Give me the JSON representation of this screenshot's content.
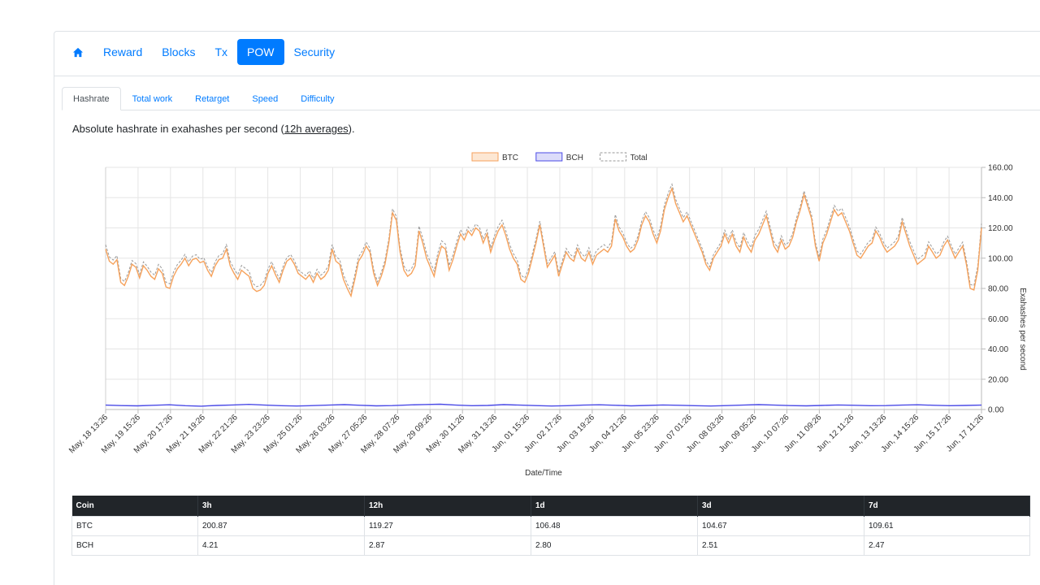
{
  "nav": {
    "home_icon": "home-icon",
    "items": [
      "Reward",
      "Blocks",
      "Tx",
      "POW",
      "Security"
    ],
    "active": "POW"
  },
  "subtabs": {
    "items": [
      "Hashrate",
      "Total work",
      "Retarget",
      "Speed",
      "Difficulty"
    ],
    "active": "Hashrate"
  },
  "description": {
    "prefix": "Absolute hashrate in exahashes per second (",
    "link": "12h averages",
    "suffix": ")."
  },
  "colors": {
    "btc": "#f6a25c",
    "bch": "#4b4be6",
    "total": "#9a9a9a",
    "active_nav": "#007bff"
  },
  "chart_data": {
    "type": "line",
    "xlabel": "Date/Time",
    "ylabel": "Exahashes per second",
    "ylim": [
      0,
      160
    ],
    "yticks": [
      "0.00",
      "20.00",
      "40.00",
      "60.00",
      "80.00",
      "100.00",
      "120.00",
      "140.00",
      "160.00"
    ],
    "x_tick_labels": [
      "May, 18 13:26",
      "May, 19 15:26",
      "May, 20 17:26",
      "May, 21 19:26",
      "May, 22 21:26",
      "May, 23 23:26",
      "May, 25 01:26",
      "May, 26 03:26",
      "May, 27 05:26",
      "May, 28 07:26",
      "May, 29 09:26",
      "May, 30 11:26",
      "May, 31 13:26",
      "Jun, 01 15:26",
      "Jun, 02 17:26",
      "Jun, 03 19:26",
      "Jun, 04 21:26",
      "Jun, 05 23:26",
      "Jun, 07 01:26",
      "Jun, 08 03:26",
      "Jun, 09 05:26",
      "Jun, 10 07:26",
      "Jun, 11 09:26",
      "Jun, 12 11:26",
      "Jun, 13 13:26",
      "Jun, 14 15:26",
      "Jun, 15 17:26",
      "Jun, 17 11:26"
    ],
    "grid": true,
    "legend_position": "top-center",
    "series": [
      {
        "name": "BTC",
        "values": [
          106,
          98,
          96,
          99,
          84,
          82,
          88,
          96,
          94,
          87,
          95,
          92,
          88,
          86,
          93,
          90,
          81,
          80,
          88,
          93,
          96,
          100,
          95,
          99,
          100,
          97,
          98,
          92,
          88,
          95,
          99,
          100,
          106,
          95,
          90,
          86,
          92,
          90,
          88,
          80,
          78,
          79,
          82,
          90,
          95,
          89,
          84,
          92,
          98,
          100,
          96,
          90,
          88,
          86,
          89,
          84,
          90,
          86,
          88,
          92,
          106,
          98,
          96,
          86,
          80,
          75,
          86,
          98,
          102,
          108,
          104,
          90,
          82,
          88,
          96,
          110,
          130,
          125,
          104,
          92,
          88,
          90,
          95,
          118,
          110,
          100,
          94,
          88,
          100,
          108,
          106,
          92,
          99,
          108,
          116,
          112,
          118,
          115,
          120,
          118,
          110,
          116,
          104,
          112,
          118,
          122,
          115,
          106,
          100,
          96,
          86,
          84,
          90,
          100,
          110,
          122,
          108,
          94,
          98,
          102,
          88,
          96,
          104,
          100,
          98,
          106,
          100,
          98,
          104,
          96,
          102,
          104,
          106,
          104,
          108,
          126,
          118,
          114,
          108,
          104,
          106,
          112,
          122,
          128,
          124,
          116,
          110,
          118,
          132,
          140,
          146,
          136,
          130,
          124,
          128,
          122,
          116,
          110,
          104,
          96,
          92,
          100,
          104,
          108,
          116,
          110,
          116,
          108,
          104,
          114,
          108,
          104,
          112,
          116,
          122,
          128,
          118,
          108,
          104,
          112,
          106,
          108,
          114,
          124,
          132,
          142,
          134,
          126,
          108,
          98,
          110,
          116,
          124,
          132,
          128,
          130,
          124,
          118,
          110,
          102,
          100,
          104,
          108,
          110,
          118,
          114,
          108,
          104,
          106,
          108,
          112,
          124,
          116,
          108,
          102,
          96,
          98,
          100,
          108,
          104,
          100,
          102,
          108,
          112,
          106,
          100,
          104,
          108,
          96,
          80,
          79,
          92,
          120
        ]
      },
      {
        "name": "BCH",
        "values": [
          2.9,
          2.6,
          2.4,
          2.8,
          3.1,
          2.5,
          2.2,
          2.7,
          3.0,
          3.4,
          2.9,
          2.5,
          2.3,
          2.6,
          2.9,
          3.2,
          2.8,
          2.4,
          2.6,
          3.0,
          3.3,
          3.5,
          2.9,
          2.5,
          2.7,
          3.2,
          2.9,
          2.6,
          2.3,
          2.5,
          2.9,
          3.1,
          2.8,
          2.4,
          2.7,
          3.0,
          2.8,
          2.5,
          2.3,
          2.6,
          2.9,
          3.2,
          2.9,
          2.6,
          2.4,
          2.7,
          3.0,
          2.8,
          2.5,
          2.6,
          2.9,
          3.1,
          2.8,
          2.5,
          2.7,
          2.9
        ]
      },
      {
        "name": "Total",
        "values": []
      }
    ]
  },
  "table": {
    "headers": [
      "Coin",
      "3h",
      "12h",
      "1d",
      "3d",
      "7d"
    ],
    "rows": [
      [
        "BTC",
        "200.87",
        "119.27",
        "106.48",
        "104.67",
        "109.61"
      ],
      [
        "BCH",
        "4.21",
        "2.87",
        "2.80",
        "2.51",
        "2.47"
      ]
    ]
  }
}
